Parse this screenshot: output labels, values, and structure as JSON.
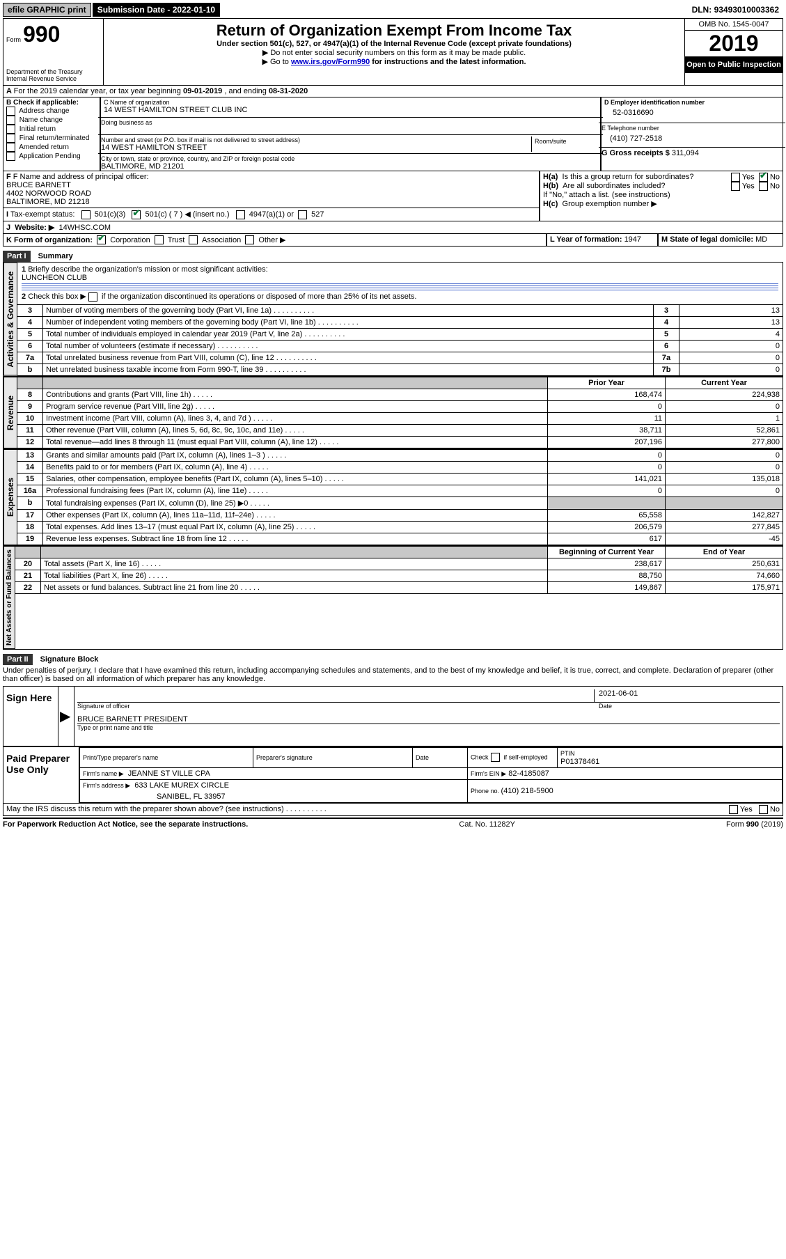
{
  "topbar": {
    "efile": "efile GRAPHIC print",
    "submission_label": "Submission Date - ",
    "submission_date": "2022-01-10",
    "dln_label": "DLN: ",
    "dln": "93493010003362"
  },
  "header": {
    "form_prefix": "Form",
    "form_number": "990",
    "dept1": "Department of the Treasury",
    "dept2": "Internal Revenue Service",
    "title": "Return of Organization Exempt From Income Tax",
    "subtitle": "Under section 501(c), 527, or 4947(a)(1) of the Internal Revenue Code (except private foundations)",
    "note1": "Do not enter social security numbers on this form as it may be made public.",
    "note2_pre": "Go to ",
    "note2_link": "www.irs.gov/Form990",
    "note2_post": " for instructions and the latest information.",
    "omb": "OMB No. 1545-0047",
    "year": "2019",
    "open": "Open to Public Inspection"
  },
  "sectionA": {
    "text_pre": "For the 2019 calendar year, or tax year beginning ",
    "begin": "09-01-2019",
    "mid": " , and ending ",
    "end": "08-31-2020"
  },
  "sectionB": {
    "label": "B Check if applicable:",
    "opts": [
      "Address change",
      "Name change",
      "Initial return",
      "Final return/terminated",
      "Amended return",
      "Application Pending"
    ]
  },
  "sectionC": {
    "name_label": "C Name of organization",
    "name": "14 WEST HAMILTON STREET CLUB INC",
    "dba_label": "Doing business as",
    "addr_label": "Number and street (or P.O. box if mail is not delivered to street address)",
    "room_label": "Room/suite",
    "addr": "14 WEST HAMILTON STREET",
    "city_label": "City or town, state or province, country, and ZIP or foreign postal code",
    "city": "BALTIMORE, MD  21201"
  },
  "sectionD": {
    "label": "D Employer identification number",
    "value": "52-0316690"
  },
  "sectionE": {
    "label": "E Telephone number",
    "value": "(410) 727-2518"
  },
  "sectionG": {
    "label": "G Gross receipts $ ",
    "value": "311,094"
  },
  "sectionF": {
    "label": "F Name and address of principal officer:",
    "name": "BRUCE BARNETT",
    "addr1": "4402 NORWOOD ROAD",
    "addr2": "BALTIMORE, MD  21218"
  },
  "sectionH": {
    "a": "Is this a group return for subordinates?",
    "b": "Are all subordinates included?",
    "b_note": "If \"No,\" attach a list. (see instructions)",
    "c_label": "Group exemption number ▶",
    "ha_pre": "H(a)",
    "hb_pre": "H(b)",
    "hc_pre": "H(c)"
  },
  "sectionI": {
    "label": "Tax-exempt status:",
    "o1": "501(c)(3)",
    "o2": "501(c) ( 7 ) ◀ (insert no.)",
    "o3": "4947(a)(1) or",
    "o4": "527"
  },
  "sectionJ": {
    "label": "Website: ▶",
    "value": "14WHSC.COM"
  },
  "sectionK": {
    "label": "K Form of organization:",
    "opts": [
      "Corporation",
      "Trust",
      "Association",
      "Other ▶"
    ]
  },
  "sectionL": {
    "label": "L Year of formation: ",
    "value": "1947"
  },
  "sectionM": {
    "label": "M State of legal domicile:",
    "value": "MD"
  },
  "part1": {
    "header": "Part I",
    "title": "Summary",
    "q1": "Briefly describe the organization's mission or most significant activities:",
    "q1_ans": "LUNCHEON CLUB",
    "q2": "Check this box ▶",
    "q2_post": " if the organization discontinued its operations or disposed of more than 25% of its net assets.",
    "lines": [
      {
        "n": "3",
        "t": "Number of voting members of the governing body (Part VI, line 1a)",
        "box": "3",
        "v": "13"
      },
      {
        "n": "4",
        "t": "Number of independent voting members of the governing body (Part VI, line 1b)",
        "box": "4",
        "v": "13"
      },
      {
        "n": "5",
        "t": "Total number of individuals employed in calendar year 2019 (Part V, line 2a)",
        "box": "5",
        "v": "4"
      },
      {
        "n": "6",
        "t": "Total number of volunteers (estimate if necessary)",
        "box": "6",
        "v": "0"
      },
      {
        "n": "7a",
        "t": "Total unrelated business revenue from Part VIII, column (C), line 12",
        "box": "7a",
        "v": "0"
      },
      {
        "n": "b",
        "t": "Net unrelated business taxable income from Form 990-T, line 39",
        "box": "7b",
        "v": "0"
      }
    ],
    "col_prior": "Prior Year",
    "col_current": "Current Year",
    "revenue": [
      {
        "n": "8",
        "t": "Contributions and grants (Part VIII, line 1h)",
        "p": "168,474",
        "c": "224,938"
      },
      {
        "n": "9",
        "t": "Program service revenue (Part VIII, line 2g)",
        "p": "0",
        "c": "0"
      },
      {
        "n": "10",
        "t": "Investment income (Part VIII, column (A), lines 3, 4, and 7d )",
        "p": "11",
        "c": "1"
      },
      {
        "n": "11",
        "t": "Other revenue (Part VIII, column (A), lines 5, 6d, 8c, 9c, 10c, and 11e)",
        "p": "38,711",
        "c": "52,861"
      },
      {
        "n": "12",
        "t": "Total revenue—add lines 8 through 11 (must equal Part VIII, column (A), line 12)",
        "p": "207,196",
        "c": "277,800"
      }
    ],
    "expenses": [
      {
        "n": "13",
        "t": "Grants and similar amounts paid (Part IX, column (A), lines 1–3 )",
        "p": "0",
        "c": "0"
      },
      {
        "n": "14",
        "t": "Benefits paid to or for members (Part IX, column (A), line 4)",
        "p": "0",
        "c": "0"
      },
      {
        "n": "15",
        "t": "Salaries, other compensation, employee benefits (Part IX, column (A), lines 5–10)",
        "p": "141,021",
        "c": "135,018"
      },
      {
        "n": "16a",
        "t": "Professional fundraising fees (Part IX, column (A), line 11e)",
        "p": "0",
        "c": "0"
      },
      {
        "n": "b",
        "t": "Total fundraising expenses (Part IX, column (D), line 25) ▶0",
        "p": "",
        "c": "",
        "gray": true
      },
      {
        "n": "17",
        "t": "Other expenses (Part IX, column (A), lines 11a–11d, 11f–24e)",
        "p": "65,558",
        "c": "142,827"
      },
      {
        "n": "18",
        "t": "Total expenses. Add lines 13–17 (must equal Part IX, column (A), line 25)",
        "p": "206,579",
        "c": "277,845"
      },
      {
        "n": "19",
        "t": "Revenue less expenses. Subtract line 18 from line 12",
        "p": "617",
        "c": "-45"
      }
    ],
    "col_begin": "Beginning of Current Year",
    "col_end": "End of Year",
    "netassets": [
      {
        "n": "20",
        "t": "Total assets (Part X, line 16)",
        "p": "238,617",
        "c": "250,631"
      },
      {
        "n": "21",
        "t": "Total liabilities (Part X, line 26)",
        "p": "88,750",
        "c": "74,660"
      },
      {
        "n": "22",
        "t": "Net assets or fund balances. Subtract line 21 from line 20",
        "p": "149,867",
        "c": "175,971"
      }
    ],
    "tab_ag": "Activities & Governance",
    "tab_rev": "Revenue",
    "tab_exp": "Expenses",
    "tab_na": "Net Assets or Fund Balances"
  },
  "part2": {
    "header": "Part II",
    "title": "Signature Block",
    "perjury": "Under penalties of perjury, I declare that I have examined this return, including accompanying schedules and statements, and to the best of my knowledge and belief, it is true, correct, and complete. Declaration of preparer (other than officer) is based on all information of which preparer has any knowledge.",
    "sign_here": "Sign Here",
    "sig_officer": "Signature of officer",
    "sig_date_label": "Date",
    "sig_date": "2021-06-01",
    "officer_name": "BRUCE BARNETT  PRESIDENT",
    "type_name": "Type or print name and title",
    "paid": "Paid Preparer Use Only",
    "prep_name_label": "Print/Type preparer's name",
    "prep_sig_label": "Preparer's signature",
    "date_label": "Date",
    "check_self": "Check",
    "check_self2": "if self-employed",
    "ptin_label": "PTIN",
    "ptin": "P01378461",
    "firm_name_label": "Firm's name   ▶",
    "firm_name": "JEANNE ST VILLE CPA",
    "firm_ein_label": "Firm's EIN ▶",
    "firm_ein": "82-4185087",
    "firm_addr_label": "Firm's address ▶",
    "firm_addr1": "633 LAKE MUREX CIRCLE",
    "firm_addr2": "SANIBEL, FL  33957",
    "phone_label": "Phone no. ",
    "phone": "(410) 218-5900",
    "discuss": "May the IRS discuss this return with the preparer shown above? (see instructions)"
  },
  "footer": {
    "left": "For Paperwork Reduction Act Notice, see the separate instructions.",
    "mid": "Cat. No. 11282Y",
    "right_pre": "Form ",
    "right_form": "990",
    "right_post": " (2019)"
  },
  "yes": "Yes",
  "no": "No"
}
